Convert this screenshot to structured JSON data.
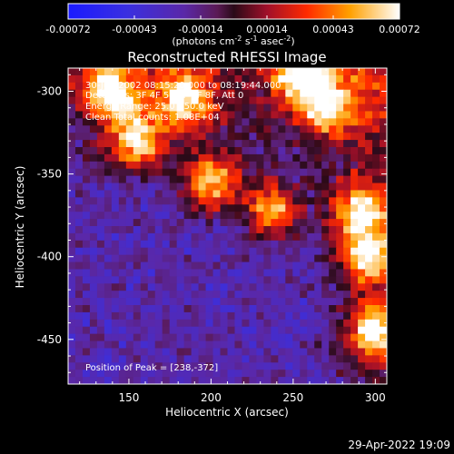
{
  "chart_data": {
    "type": "heatmap",
    "title": "Reconstructed RHESSI Image",
    "xlabel": "Heliocentric X (arcsec)",
    "ylabel": "Heliocentric Y (arcsec)",
    "xlim": [
      113,
      307
    ],
    "ylim": [
      -477,
      -286
    ],
    "x_ticks": [
      150,
      200,
      250,
      300
    ],
    "y_ticks": [
      -300,
      -350,
      -400,
      -450
    ],
    "colorbar": {
      "ticks": [
        "-0.00072",
        "-0.00043",
        "-0.00014",
        "0.00014",
        "0.00043",
        "0.00072"
      ],
      "unit_label": "(photons cm",
      "unit_sup1": "-2",
      "unit_mid1": " s",
      "unit_sup2": "-1",
      "unit_mid2": " asec",
      "unit_sup3": "-2",
      "unit_end": ")",
      "range": [
        -0.00072,
        0.00072
      ]
    },
    "annotations": {
      "time_range": "30-Jun-2002 08:15:20.000 to 08:19:44.000",
      "detectors": "Detectors: 3F 4F 5F 6F 7F 8F, Att 0",
      "energy": "Energy Range: 25.0 - 50.0 keV",
      "clean": "Clean     Total counts: 1.08E+04",
      "peak": "Position of Peak = [238,-372]"
    },
    "footer_date": "29-Apr-2022 19:09",
    "bright_regions": [
      {
        "x": 290,
        "y": -372
      },
      {
        "x": 238,
        "y": -372
      },
      {
        "x": 200,
        "y": -355
      },
      {
        "x": 155,
        "y": -330
      },
      {
        "x": 270,
        "y": -310
      },
      {
        "x": 140,
        "y": -300
      },
      {
        "x": 300,
        "y": -445
      },
      {
        "x": 295,
        "y": -400
      },
      {
        "x": 255,
        "y": -290
      },
      {
        "x": 185,
        "y": -305
      }
    ]
  }
}
